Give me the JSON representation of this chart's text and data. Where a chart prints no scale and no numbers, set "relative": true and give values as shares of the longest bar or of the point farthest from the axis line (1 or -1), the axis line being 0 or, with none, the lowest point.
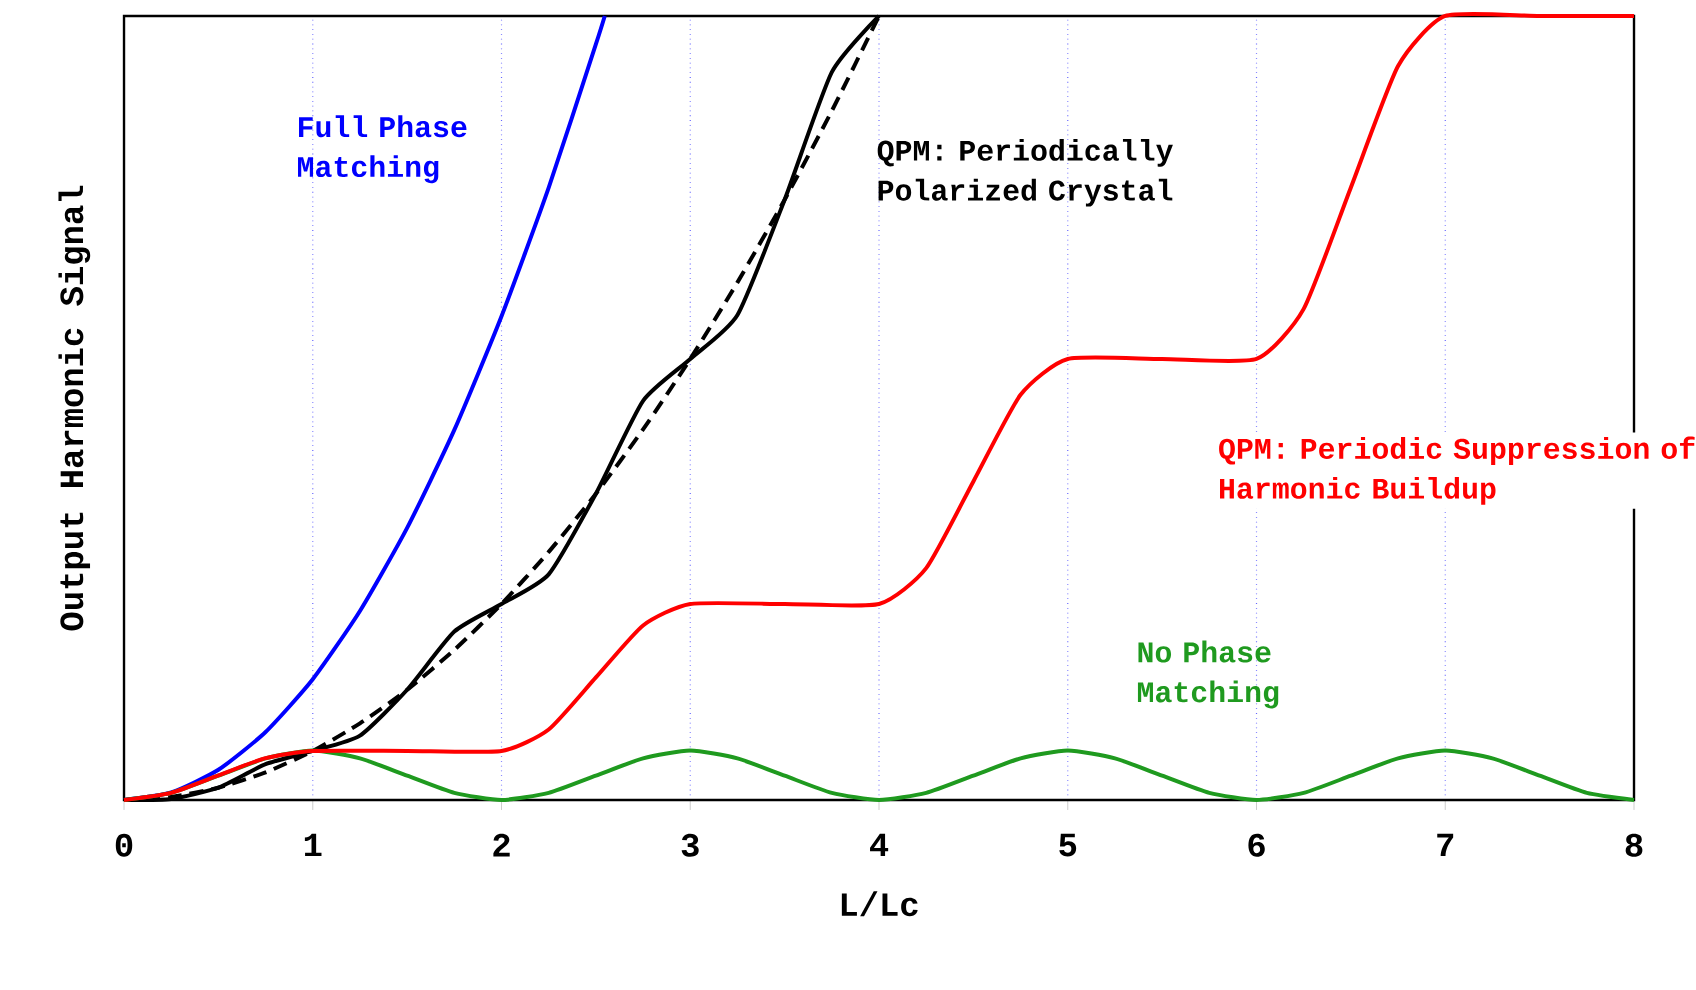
{
  "chart_data": {
    "type": "line",
    "relative": true,
    "xlabel": "L/Lc",
    "ylabel": "Output Harmonic Signal",
    "xlim": [
      0,
      8
    ],
    "xticks": [
      0,
      1,
      2,
      3,
      4,
      5,
      6,
      7,
      8
    ],
    "grid": "x",
    "marker": "none",
    "series": [
      {
        "name": "Full Phase Matching",
        "color": "#0000ff",
        "line_style": "solid",
        "x": [
          0,
          0.25,
          0.5,
          0.75,
          1,
          1.25,
          1.5,
          1.75,
          2,
          2.25,
          2.5,
          2.547
        ],
        "values": [
          0,
          0.0096,
          0.0385,
          0.0867,
          0.154,
          0.241,
          0.347,
          0.472,
          0.617,
          0.781,
          0.964,
          1.0
        ]
      },
      {
        "color": "#000000",
        "line_style": "dashed",
        "x": [
          0,
          0.25,
          0.5,
          0.75,
          1,
          1.25,
          1.5,
          1.75,
          2,
          2.25,
          2.5,
          2.75,
          3,
          3.25,
          3.5,
          3.75,
          4
        ],
        "values": [
          0,
          0.0039,
          0.0156,
          0.0352,
          0.0625,
          0.0977,
          0.1406,
          0.1914,
          0.25,
          0.3164,
          0.3906,
          0.4727,
          0.5625,
          0.6602,
          0.7656,
          0.8789,
          1.0
        ]
      },
      {
        "name": "QPM: Periodically Polarized Crystal",
        "color": "#000000",
        "line_style": "solid",
        "x": [
          0,
          0.25,
          0.5,
          0.75,
          1,
          1.25,
          1.5,
          1.75,
          2,
          2.25,
          2.5,
          2.75,
          3,
          3.25,
          3.5,
          3.75,
          4
        ],
        "values": [
          0,
          0.0013,
          0.0156,
          0.0456,
          0.0625,
          0.0821,
          0.1406,
          0.2148,
          0.25,
          0.2878,
          0.3906,
          0.5091,
          0.5625,
          0.6186,
          0.7656,
          0.9283,
          1.0
        ]
      },
      {
        "name": "No Phase Matching",
        "color": "#1f9a1f",
        "line_style": "solid",
        "x": [
          0,
          0.25,
          0.5,
          0.75,
          1,
          1.25,
          1.5,
          1.75,
          2,
          2.25,
          2.5,
          2.75,
          3,
          3.25,
          3.5,
          3.75,
          4,
          4.25,
          4.5,
          4.75,
          5,
          5.25,
          5.5,
          5.75,
          6,
          6.25,
          6.5,
          6.75,
          7,
          7.25,
          7.5,
          7.75,
          8
        ],
        "values": [
          0,
          0.009,
          0.031,
          0.053,
          0.063,
          0.053,
          0.031,
          0.009,
          0,
          0.009,
          0.031,
          0.053,
          0.063,
          0.053,
          0.031,
          0.009,
          0,
          0.009,
          0.031,
          0.053,
          0.063,
          0.053,
          0.031,
          0.009,
          0,
          0.009,
          0.031,
          0.053,
          0.063,
          0.053,
          0.031,
          0.009,
          0
        ]
      },
      {
        "name": "QPM: Periodic Suppression of Harmonic Buildup",
        "color": "#ff0000",
        "line_style": "solid",
        "x": [
          0,
          0.25,
          0.5,
          0.75,
          1,
          1.5,
          2,
          2.25,
          2.5,
          2.75,
          3,
          3.5,
          4,
          4.25,
          4.5,
          4.75,
          5,
          5.5,
          6,
          6.25,
          6.5,
          6.75,
          7,
          7.5,
          8
        ],
        "values": [
          0,
          0.0091,
          0.0313,
          0.0534,
          0.0625,
          0.0625,
          0.0625,
          0.0899,
          0.1563,
          0.2226,
          0.25,
          0.25,
          0.25,
          0.2957,
          0.4063,
          0.5168,
          0.5625,
          0.5625,
          0.5625,
          0.6264,
          0.7813,
          0.9361,
          1.0,
          1.0,
          1.0
        ]
      }
    ]
  }
}
